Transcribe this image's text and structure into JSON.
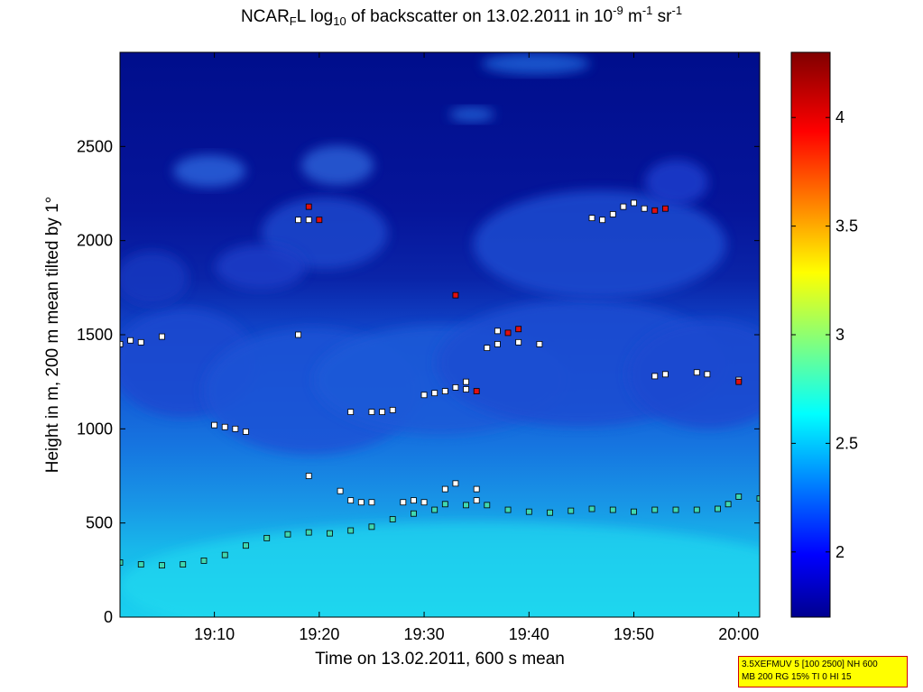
{
  "title": {
    "pre": "NCAR",
    "sub1": "F",
    "mid": "L log",
    "sub2": "10",
    "post": " of backscatter on 13.02.2011 in 10",
    "sup1": "-9",
    "unit_m": " m",
    "sup2": "-1",
    "unit_sr": " sr",
    "sup3": "-1"
  },
  "info_box": {
    "line1": "3.5XEFMUV 5 [100 2500] NH 600",
    "line2": "MB 200 RG 15% TI 0 HI 15"
  },
  "colors": {
    "background_sky": "#0a1a8c",
    "deep_sky": "#000d80",
    "low_band": "#20c8e6",
    "marker_white": "#ffffff",
    "marker_red": "#e01010",
    "marker_green": "#40d8b0"
  },
  "chart_data": {
    "type": "heatmap",
    "xlabel": "Time on 13.02.2011, 600 s mean",
    "ylabel": "Height in m, 200 m mean tilted by 1°",
    "xlim": [
      "19:01",
      "20:02"
    ],
    "ylim": [
      0,
      3000
    ],
    "x_ticks": [
      "19:10",
      "19:20",
      "19:30",
      "19:40",
      "19:50",
      "20:00"
    ],
    "y_ticks": [
      0,
      500,
      1000,
      1500,
      2000,
      2500
    ],
    "colorbar": {
      "range": [
        1.7,
        4.3
      ],
      "ticks": [
        2,
        2.5,
        3,
        3.5,
        4
      ],
      "colormap": "jet"
    },
    "series": [
      {
        "marker": "green-square",
        "points": [
          [
            "19:01",
            290
          ],
          [
            "19:03",
            280
          ],
          [
            "19:05",
            275
          ],
          [
            "19:07",
            280
          ],
          [
            "19:09",
            300
          ],
          [
            "19:11",
            330
          ],
          [
            "19:13",
            380
          ],
          [
            "19:15",
            420
          ],
          [
            "19:17",
            440
          ],
          [
            "19:19",
            450
          ],
          [
            "19:21",
            445
          ],
          [
            "19:23",
            460
          ],
          [
            "19:25",
            480
          ],
          [
            "19:27",
            520
          ],
          [
            "19:29",
            550
          ],
          [
            "19:31",
            570
          ],
          [
            "19:32",
            600
          ],
          [
            "19:34",
            595
          ],
          [
            "19:36",
            595
          ],
          [
            "19:38",
            570
          ],
          [
            "19:40",
            560
          ],
          [
            "19:42",
            555
          ],
          [
            "19:44",
            565
          ],
          [
            "19:46",
            575
          ],
          [
            "19:48",
            570
          ],
          [
            "19:50",
            560
          ],
          [
            "19:52",
            570
          ],
          [
            "19:54",
            570
          ],
          [
            "19:56",
            570
          ],
          [
            "19:58",
            575
          ],
          [
            "19:59",
            600
          ],
          [
            "20:00",
            640
          ],
          [
            "20:02",
            630
          ]
        ]
      },
      {
        "marker": "white-square",
        "points": [
          [
            "19:01",
            1450
          ],
          [
            "19:02",
            1470
          ],
          [
            "19:03",
            1460
          ],
          [
            "19:05",
            1490
          ],
          [
            "19:10",
            1020
          ],
          [
            "19:11",
            1010
          ],
          [
            "19:12",
            1000
          ],
          [
            "19:13",
            985
          ],
          [
            "19:18",
            1500
          ],
          [
            "19:18",
            2110
          ],
          [
            "19:19",
            2110
          ],
          [
            "19:19",
            750
          ],
          [
            "19:22",
            670
          ],
          [
            "19:23",
            1090
          ],
          [
            "19:23",
            620
          ],
          [
            "19:24",
            610
          ],
          [
            "19:25",
            1090
          ],
          [
            "19:25",
            610
          ],
          [
            "19:26",
            1090
          ],
          [
            "19:27",
            1100
          ],
          [
            "19:28",
            610
          ],
          [
            "19:29",
            620
          ],
          [
            "19:30",
            610
          ],
          [
            "19:30",
            1180
          ],
          [
            "19:31",
            1190
          ],
          [
            "19:32",
            1200
          ],
          [
            "19:32",
            680
          ],
          [
            "19:33",
            710
          ],
          [
            "19:33",
            1220
          ],
          [
            "19:34",
            1210
          ],
          [
            "19:34",
            1250
          ],
          [
            "19:35",
            620
          ],
          [
            "19:35",
            680
          ],
          [
            "19:36",
            1430
          ],
          [
            "19:37",
            1450
          ],
          [
            "19:37",
            1520
          ],
          [
            "19:39",
            1460
          ],
          [
            "19:41",
            1450
          ],
          [
            "19:46",
            2120
          ],
          [
            "19:47",
            2110
          ],
          [
            "19:48",
            2140
          ],
          [
            "19:49",
            2180
          ],
          [
            "19:50",
            2200
          ],
          [
            "19:51",
            2170
          ],
          [
            "19:52",
            1280
          ],
          [
            "19:53",
            1290
          ],
          [
            "19:56",
            1300
          ],
          [
            "19:57",
            1290
          ],
          [
            "20:00",
            1260
          ]
        ]
      },
      {
        "marker": "red-square",
        "points": [
          [
            "19:19",
            2180
          ],
          [
            "19:20",
            2110
          ],
          [
            "19:33",
            1710
          ],
          [
            "19:35",
            1200
          ],
          [
            "19:38",
            1510
          ],
          [
            "19:39",
            1530
          ],
          [
            "19:52",
            2160
          ],
          [
            "19:53",
            2170
          ],
          [
            "20:00",
            1250
          ]
        ]
      }
    ]
  }
}
